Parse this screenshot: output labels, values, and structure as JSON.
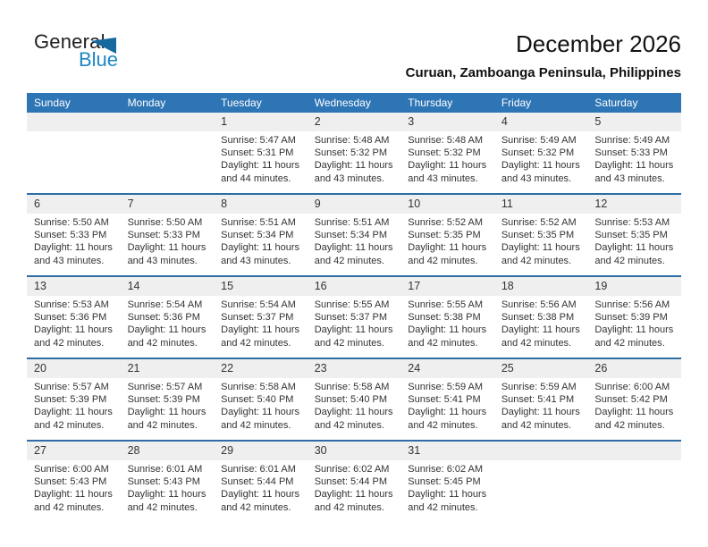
{
  "logo": {
    "part1": "General",
    "part2": "Blue"
  },
  "header": {
    "title": "December 2026",
    "subtitle": "Curuan, Zamboanga Peninsula, Philippines"
  },
  "colors": {
    "header_bg": "#2e75b5",
    "row_line": "#2e6da4",
    "day_band_bg": "#efefef",
    "logo_blue": "#1d87c4",
    "logo_triangle": "#16699f"
  },
  "calendar": {
    "day_headers": [
      "Sunday",
      "Monday",
      "Tuesday",
      "Wednesday",
      "Thursday",
      "Friday",
      "Saturday"
    ],
    "weeks": [
      [
        null,
        null,
        {
          "day": "1",
          "lines": [
            "Sunrise: 5:47 AM",
            "Sunset: 5:31 PM",
            "Daylight: 11 hours",
            "and 44 minutes."
          ]
        },
        {
          "day": "2",
          "lines": [
            "Sunrise: 5:48 AM",
            "Sunset: 5:32 PM",
            "Daylight: 11 hours",
            "and 43 minutes."
          ]
        },
        {
          "day": "3",
          "lines": [
            "Sunrise: 5:48 AM",
            "Sunset: 5:32 PM",
            "Daylight: 11 hours",
            "and 43 minutes."
          ]
        },
        {
          "day": "4",
          "lines": [
            "Sunrise: 5:49 AM",
            "Sunset: 5:32 PM",
            "Daylight: 11 hours",
            "and 43 minutes."
          ]
        },
        {
          "day": "5",
          "lines": [
            "Sunrise: 5:49 AM",
            "Sunset: 5:33 PM",
            "Daylight: 11 hours",
            "and 43 minutes."
          ]
        }
      ],
      [
        {
          "day": "6",
          "lines": [
            "Sunrise: 5:50 AM",
            "Sunset: 5:33 PM",
            "Daylight: 11 hours",
            "and 43 minutes."
          ]
        },
        {
          "day": "7",
          "lines": [
            "Sunrise: 5:50 AM",
            "Sunset: 5:33 PM",
            "Daylight: 11 hours",
            "and 43 minutes."
          ]
        },
        {
          "day": "8",
          "lines": [
            "Sunrise: 5:51 AM",
            "Sunset: 5:34 PM",
            "Daylight: 11 hours",
            "and 43 minutes."
          ]
        },
        {
          "day": "9",
          "lines": [
            "Sunrise: 5:51 AM",
            "Sunset: 5:34 PM",
            "Daylight: 11 hours",
            "and 42 minutes."
          ]
        },
        {
          "day": "10",
          "lines": [
            "Sunrise: 5:52 AM",
            "Sunset: 5:35 PM",
            "Daylight: 11 hours",
            "and 42 minutes."
          ]
        },
        {
          "day": "11",
          "lines": [
            "Sunrise: 5:52 AM",
            "Sunset: 5:35 PM",
            "Daylight: 11 hours",
            "and 42 minutes."
          ]
        },
        {
          "day": "12",
          "lines": [
            "Sunrise: 5:53 AM",
            "Sunset: 5:35 PM",
            "Daylight: 11 hours",
            "and 42 minutes."
          ]
        }
      ],
      [
        {
          "day": "13",
          "lines": [
            "Sunrise: 5:53 AM",
            "Sunset: 5:36 PM",
            "Daylight: 11 hours",
            "and 42 minutes."
          ]
        },
        {
          "day": "14",
          "lines": [
            "Sunrise: 5:54 AM",
            "Sunset: 5:36 PM",
            "Daylight: 11 hours",
            "and 42 minutes."
          ]
        },
        {
          "day": "15",
          "lines": [
            "Sunrise: 5:54 AM",
            "Sunset: 5:37 PM",
            "Daylight: 11 hours",
            "and 42 minutes."
          ]
        },
        {
          "day": "16",
          "lines": [
            "Sunrise: 5:55 AM",
            "Sunset: 5:37 PM",
            "Daylight: 11 hours",
            "and 42 minutes."
          ]
        },
        {
          "day": "17",
          "lines": [
            "Sunrise: 5:55 AM",
            "Sunset: 5:38 PM",
            "Daylight: 11 hours",
            "and 42 minutes."
          ]
        },
        {
          "day": "18",
          "lines": [
            "Sunrise: 5:56 AM",
            "Sunset: 5:38 PM",
            "Daylight: 11 hours",
            "and 42 minutes."
          ]
        },
        {
          "day": "19",
          "lines": [
            "Sunrise: 5:56 AM",
            "Sunset: 5:39 PM",
            "Daylight: 11 hours",
            "and 42 minutes."
          ]
        }
      ],
      [
        {
          "day": "20",
          "lines": [
            "Sunrise: 5:57 AM",
            "Sunset: 5:39 PM",
            "Daylight: 11 hours",
            "and 42 minutes."
          ]
        },
        {
          "day": "21",
          "lines": [
            "Sunrise: 5:57 AM",
            "Sunset: 5:39 PM",
            "Daylight: 11 hours",
            "and 42 minutes."
          ]
        },
        {
          "day": "22",
          "lines": [
            "Sunrise: 5:58 AM",
            "Sunset: 5:40 PM",
            "Daylight: 11 hours",
            "and 42 minutes."
          ]
        },
        {
          "day": "23",
          "lines": [
            "Sunrise: 5:58 AM",
            "Sunset: 5:40 PM",
            "Daylight: 11 hours",
            "and 42 minutes."
          ]
        },
        {
          "day": "24",
          "lines": [
            "Sunrise: 5:59 AM",
            "Sunset: 5:41 PM",
            "Daylight: 11 hours",
            "and 42 minutes."
          ]
        },
        {
          "day": "25",
          "lines": [
            "Sunrise: 5:59 AM",
            "Sunset: 5:41 PM",
            "Daylight: 11 hours",
            "and 42 minutes."
          ]
        },
        {
          "day": "26",
          "lines": [
            "Sunrise: 6:00 AM",
            "Sunset: 5:42 PM",
            "Daylight: 11 hours",
            "and 42 minutes."
          ]
        }
      ],
      [
        {
          "day": "27",
          "lines": [
            "Sunrise: 6:00 AM",
            "Sunset: 5:43 PM",
            "Daylight: 11 hours",
            "and 42 minutes."
          ]
        },
        {
          "day": "28",
          "lines": [
            "Sunrise: 6:01 AM",
            "Sunset: 5:43 PM",
            "Daylight: 11 hours",
            "and 42 minutes."
          ]
        },
        {
          "day": "29",
          "lines": [
            "Sunrise: 6:01 AM",
            "Sunset: 5:44 PM",
            "Daylight: 11 hours",
            "and 42 minutes."
          ]
        },
        {
          "day": "30",
          "lines": [
            "Sunrise: 6:02 AM",
            "Sunset: 5:44 PM",
            "Daylight: 11 hours",
            "and 42 minutes."
          ]
        },
        {
          "day": "31",
          "lines": [
            "Sunrise: 6:02 AM",
            "Sunset: 5:45 PM",
            "Daylight: 11 hours",
            "and 42 minutes."
          ]
        },
        null,
        null
      ]
    ]
  }
}
